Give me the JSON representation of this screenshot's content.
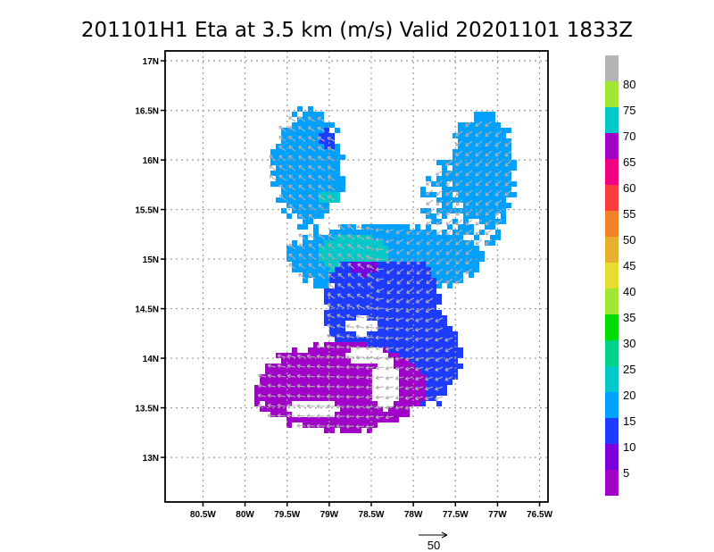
{
  "chart_data": {
    "type": "heatmap",
    "title": "201101H1 Eta at 3.5 km (m/s) Valid 20201101 1833Z",
    "x_ticks": [
      "80.5W",
      "80W",
      "79.5W",
      "79W",
      "78.5W",
      "78W",
      "77.5W",
      "77W",
      "76.5W"
    ],
    "y_ticks": [
      "17N",
      "16.5N",
      "16N",
      "15.5N",
      "15N",
      "14.5N",
      "14N",
      "13.5N",
      "13N"
    ],
    "x_range": [
      -80.95,
      -76.4
    ],
    "y_range": [
      12.55,
      17.1
    ],
    "grid": true,
    "colorbar": {
      "labels": [
        "5",
        "10",
        "15",
        "20",
        "25",
        "30",
        "35",
        "40",
        "45",
        "50",
        "55",
        "60",
        "65",
        "70",
        "75",
        "80"
      ],
      "colors": [
        "#a000c8",
        "#7b00dc",
        "#1e3cff",
        "#00a0ff",
        "#00c8c8",
        "#00d28c",
        "#00dc00",
        "#a0e632",
        "#e6dc32",
        "#e6af2d",
        "#f08228",
        "#fa3c3c",
        "#f00082",
        "#a000c8",
        "#00c8c8",
        "#a0e632",
        "#b4b4b4"
      ]
    },
    "vector_reference": {
      "label": "50"
    },
    "wind_field_regions": [
      {
        "name": "north-west lobe",
        "lon_range": [
          -79.6,
          -78.9
        ],
        "lat_range": [
          15.3,
          16.5
        ],
        "speed_class": "15"
      },
      {
        "name": "north-east arm",
        "lon_range": [
          -77.9,
          -76.8
        ],
        "lat_range": [
          15.0,
          16.5
        ],
        "speed_class": "15"
      },
      {
        "name": "band",
        "lon_range": [
          -79.3,
          -77.5
        ],
        "lat_range": [
          14.6,
          15.3
        ],
        "speed_class": "15-25"
      },
      {
        "name": "inner core",
        "lon_range": [
          -78.8,
          -77.9
        ],
        "lat_range": [
          13.8,
          14.7
        ],
        "speed_class": "10"
      },
      {
        "name": "south-west region",
        "lon_range": [
          -79.8,
          -77.6
        ],
        "lat_range": [
          13.3,
          14.2
        ],
        "speed_class": "5"
      }
    ]
  }
}
